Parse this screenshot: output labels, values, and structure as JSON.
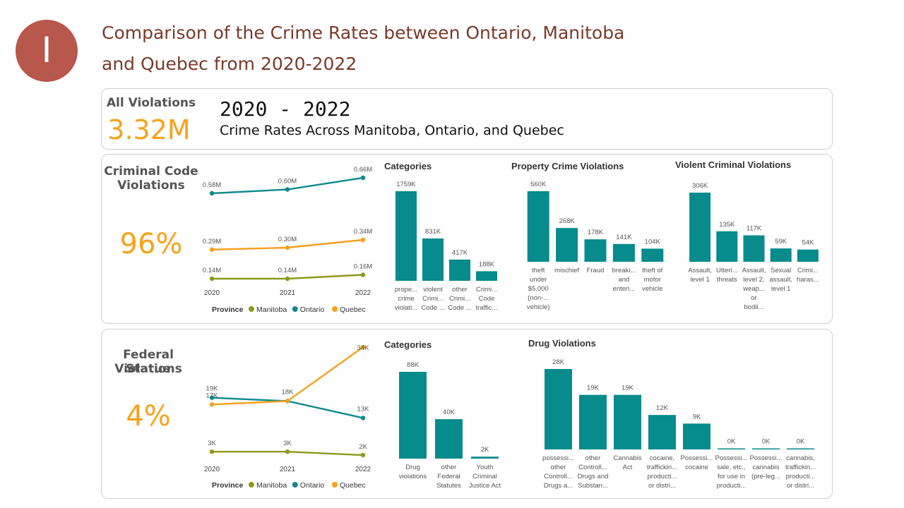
{
  "slide": {
    "badge": "I",
    "title_line1": "Comparison of the Crime Rates between Ontario, Manitoba",
    "title_line2": "and Quebec from 2020-2022"
  },
  "header": {
    "kpi_label": "All Violations",
    "kpi_value": "3.32M",
    "years": "2020 - 2022",
    "subtitle": "Crime Rates Across Manitoba, Ontario, and Quebec"
  },
  "criminal": {
    "kpi_label_1": "Criminal Code",
    "kpi_label_2": "Violations",
    "kpi_value": "96%"
  },
  "federal": {
    "kpi_label_1": "Federal Statue",
    "kpi_label_2": "Violations",
    "kpi_value": "4%"
  },
  "colors": {
    "teal": "#0f8a8c",
    "orange": "#f5a01c",
    "olive": "#8b9a1a",
    "bar": "#078b8c"
  },
  "chart_data": [
    {
      "id": "cc-line",
      "type": "line",
      "x": [
        "2020",
        "2021",
        "2022"
      ],
      "legend_title": "Province",
      "legend_placement": "bottom",
      "series": [
        {
          "name": "Manitoba",
          "color": "#8b9a1a",
          "values": [
            0.14,
            0.14,
            0.16
          ],
          "labels": [
            "0.14M",
            "0.14M",
            "0.16M"
          ]
        },
        {
          "name": "Ontario",
          "color": "#0f8a8c",
          "values": [
            0.58,
            0.6,
            0.66
          ],
          "labels": [
            "0.58M",
            "0.60M",
            "0.66M"
          ]
        },
        {
          "name": "Quebec",
          "color": "#f5a01c",
          "values": [
            0.29,
            0.3,
            0.34
          ],
          "labels": [
            "0.29M",
            "0.30M",
            "0.34M"
          ]
        }
      ]
    },
    {
      "id": "cc-categories",
      "type": "bar",
      "title": "Categories",
      "categories": [
        [
          "prope...",
          "crime",
          "violati..."
        ],
        [
          "violent",
          "Crimi...",
          "Code ..."
        ],
        [
          "other",
          "Crimi...",
          "Code ..."
        ],
        [
          "Crimi...",
          "Code",
          "traffic..."
        ]
      ],
      "values": [
        1759,
        831,
        417,
        188
      ],
      "labels": [
        "1759K",
        "831K",
        "417K",
        "188K"
      ]
    },
    {
      "id": "cc-property",
      "type": "bar",
      "title": "Property Crime Violations",
      "categories": [
        [
          "theft",
          "under",
          "$5,000",
          "(non-...",
          "vehicle)"
        ],
        [
          "mischief"
        ],
        [
          "Fraud"
        ],
        [
          "breaki...",
          "and",
          "enteri..."
        ],
        [
          "theft of",
          "motor",
          "vehicle"
        ]
      ],
      "values": [
        560,
        268,
        178,
        141,
        104
      ],
      "labels": [
        "560K",
        "268K",
        "178K",
        "141K",
        "104K"
      ]
    },
    {
      "id": "cc-violent",
      "type": "bar",
      "title": "Violent Criminal Violations",
      "categories": [
        [
          "Assault,",
          "level 1"
        ],
        [
          "Utteri...",
          "threats"
        ],
        [
          "Assault,",
          "level 2,",
          "weap...",
          "or",
          "bodil..."
        ],
        [
          "Sexual",
          "assault,",
          "level 1"
        ],
        [
          "Crimi...",
          "haras..."
        ]
      ],
      "values": [
        306,
        135,
        117,
        59,
        54
      ],
      "labels": [
        "306K",
        "135K",
        "117K",
        "59K",
        "54K"
      ]
    },
    {
      "id": "fs-line",
      "type": "line",
      "x": [
        "2020",
        "2021",
        "2022"
      ],
      "legend_title": "Province",
      "legend_placement": "bottom",
      "series": [
        {
          "name": "Manitoba",
          "color": "#8b9a1a",
          "values": [
            3,
            3,
            2
          ],
          "labels": [
            "3K",
            "3K",
            "2K"
          ]
        },
        {
          "name": "Ontario",
          "color": "#0f8a8c",
          "values": [
            19,
            18,
            13
          ],
          "labels": [
            "19K",
            "",
            "13K"
          ]
        },
        {
          "name": "Quebec",
          "color": "#f5a01c",
          "values": [
            17,
            18,
            34
          ],
          "labels": [
            "17K",
            "18K",
            "34K"
          ]
        }
      ]
    },
    {
      "id": "fs-categories",
      "type": "bar",
      "title": "Categories",
      "categories": [
        [
          "Drug",
          "violations"
        ],
        [
          "other",
          "Federal",
          "Statutes"
        ],
        [
          "Youth",
          "Criminal",
          "Justice Act"
        ]
      ],
      "values": [
        88,
        40,
        2
      ],
      "labels": [
        "88K",
        "40K",
        "2K"
      ]
    },
    {
      "id": "fs-drug",
      "type": "bar",
      "title": "Drug Violations",
      "categories": [
        [
          "possessi...",
          "other",
          "Controll...",
          "Drugs a..."
        ],
        [
          "other",
          "Controll...",
          "Drugs and",
          "Substan..."
        ],
        [
          "Cannabis",
          "Act"
        ],
        [
          "cocaine,",
          "traffickin...",
          "producti...",
          "or distri..."
        ],
        [
          "Possessi...",
          "cocaine"
        ],
        [
          "Possessi...",
          "sale, etc.,",
          "for use in",
          "producti..."
        ],
        [
          "Possessi...",
          "cannabis",
          "(pre-leg..."
        ],
        [
          "cannabis,",
          "traffickin...",
          "producti...",
          "or distri..."
        ]
      ],
      "values": [
        28,
        19,
        19,
        12,
        9,
        0,
        0,
        0
      ],
      "labels": [
        "28K",
        "19K",
        "19K",
        "12K",
        "9K",
        "0K",
        "0K",
        "0K"
      ]
    }
  ]
}
